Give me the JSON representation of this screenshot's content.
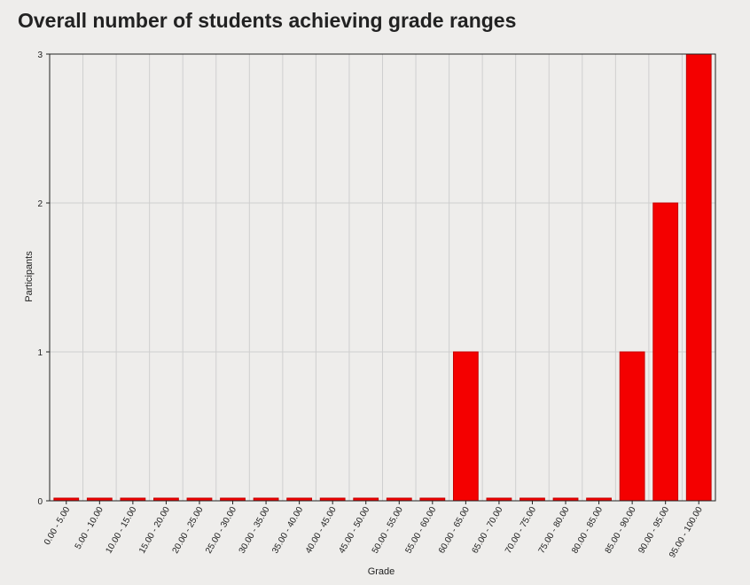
{
  "title": "Overall number of students achieving grade ranges",
  "chart_data": {
    "type": "bar",
    "title": "Overall number of students achieving grade ranges",
    "xlabel": "Grade",
    "ylabel": "Participants",
    "ylim": [
      0,
      3
    ],
    "yticks": [
      "0",
      "1",
      "2",
      "3"
    ],
    "grid": true,
    "categories": [
      "0.00 - 5.00",
      "5.00 - 10.00",
      "10.00 - 15.00",
      "15.00 - 20.00",
      "20.00 - 25.00",
      "25.00 - 30.00",
      "30.00 - 35.00",
      "35.00 - 40.00",
      "40.00 - 45.00",
      "45.00 - 50.00",
      "50.00 - 55.00",
      "55.00 - 60.00",
      "60.00 - 65.00",
      "65.00 - 70.00",
      "70.00 - 75.00",
      "75.00 - 80.00",
      "80.00 - 85.00",
      "85.00 - 90.00",
      "90.00 - 95.00",
      "95.00 - 100.00"
    ],
    "values": [
      0,
      0,
      0,
      0,
      0,
      0,
      0,
      0,
      0,
      0,
      0,
      0,
      1,
      0,
      0,
      0,
      0,
      1,
      2,
      3
    ],
    "colors": {
      "bar": "#f40000",
      "bar_edge": "#c40000",
      "grid": "#cfcfcf",
      "axis": "#222222"
    }
  }
}
